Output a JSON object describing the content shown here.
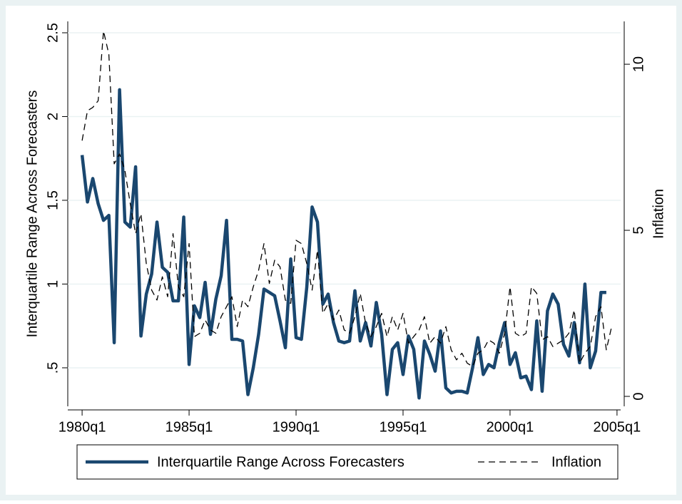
{
  "chart_data": {
    "type": "line",
    "ylabel": "Interquartile Range Across Forecasters",
    "y2label": "Inflation",
    "x": [
      1980,
      1980.25,
      1980.5,
      1980.75,
      1981,
      1981.25,
      1981.5,
      1981.75,
      1982,
      1982.25,
      1982.5,
      1982.75,
      1983,
      1983.25,
      1983.5,
      1983.75,
      1984,
      1984.25,
      1984.5,
      1984.75,
      1985,
      1985.25,
      1985.5,
      1985.75,
      1986,
      1986.25,
      1986.5,
      1986.75,
      1987,
      1987.25,
      1987.5,
      1987.75,
      1988,
      1988.25,
      1988.5,
      1988.75,
      1989,
      1989.25,
      1989.5,
      1989.75,
      1990,
      1990.25,
      1990.5,
      1990.75,
      1991,
      1991.25,
      1991.5,
      1991.75,
      1992,
      1992.25,
      1992.5,
      1992.75,
      1993,
      1993.25,
      1993.5,
      1993.75,
      1994,
      1994.25,
      1994.5,
      1994.75,
      1995,
      1995.25,
      1995.5,
      1995.75,
      1996,
      1996.25,
      1996.5,
      1996.75,
      1997,
      1997.25,
      1997.5,
      1997.75,
      1998,
      1998.25,
      1998.5,
      1998.75,
      1999,
      1999.25,
      1999.5,
      1999.75,
      2000,
      2000.25,
      2000.5,
      2000.75,
      2001,
      2001.25,
      2001.5,
      2001.75,
      2002,
      2002.25,
      2002.5,
      2002.75,
      2003,
      2003.25,
      2003.5,
      2003.75,
      2004,
      2004.25,
      2004.5,
      2004.75
    ],
    "series": [
      {
        "name": "Interquartile Range Across Forecasters",
        "color": "#1a476f",
        "width": 4.5,
        "line_style": "solid",
        "axis": "y",
        "values": [
          1.77,
          1.49,
          1.63,
          1.48,
          1.38,
          1.41,
          0.65,
          2.16,
          1.37,
          1.34,
          1.7,
          0.69,
          0.94,
          1.06,
          1.37,
          1.1,
          1.07,
          0.9,
          0.9,
          1.4,
          0.52,
          0.87,
          0.8,
          1.01,
          0.7,
          0.91,
          1.05,
          1.38,
          0.67,
          0.67,
          0.66,
          0.34,
          0.5,
          0.7,
          0.97,
          0.95,
          0.93,
          0.78,
          0.62,
          1.15,
          0.68,
          0.67,
          0.98,
          1.46,
          1.37,
          0.88,
          0.94,
          0.77,
          0.66,
          0.65,
          0.66,
          0.96,
          0.66,
          0.77,
          0.63,
          0.89,
          0.7,
          0.34,
          0.61,
          0.65,
          0.46,
          0.69,
          0.61,
          0.32,
          0.66,
          0.58,
          0.48,
          0.72,
          0.38,
          0.35,
          0.36,
          0.36,
          0.35,
          0.5,
          0.68,
          0.46,
          0.52,
          0.5,
          0.65,
          0.77,
          0.52,
          0.59,
          0.44,
          0.45,
          0.37,
          0.78,
          0.36,
          0.84,
          0.94,
          0.88,
          0.64,
          0.57,
          0.77,
          0.53,
          1.0,
          0.5,
          0.6,
          0.95,
          0.95,
          null
        ]
      },
      {
        "name": "Inflation",
        "color": "#000000",
        "width": 1.3,
        "line_style": "dashed",
        "axis": "y2",
        "values": [
          7.7,
          8.6,
          8.7,
          8.9,
          11.0,
          10.3,
          7.0,
          7.3,
          6.8,
          5.8,
          4.9,
          5.5,
          4.0,
          3.2,
          2.9,
          3.6,
          3.0,
          4.9,
          3.3,
          3.0,
          4.6,
          1.8,
          1.9,
          2.3,
          2.0,
          1.9,
          2.4,
          2.7,
          3.0,
          2.1,
          2.9,
          2.7,
          3.3,
          3.8,
          4.6,
          3.4,
          4.1,
          3.9,
          2.9,
          2.8,
          4.7,
          4.6,
          4.0,
          3.2,
          4.4,
          2.5,
          2.8,
          2.3,
          2.6,
          2.0,
          1.9,
          2.4,
          3.1,
          2.2,
          1.8,
          2.1,
          2.5,
          1.8,
          2.4,
          2.0,
          2.5,
          1.6,
          1.8,
          2.0,
          2.4,
          1.6,
          1.8,
          1.6,
          2.1,
          1.4,
          1.1,
          1.3,
          1.0,
          0.9,
          1.3,
          1.4,
          1.7,
          1.6,
          1.3,
          1.9,
          3.3,
          1.9,
          1.8,
          1.9,
          3.3,
          3.1,
          1.7,
          1.8,
          1.5,
          1.6,
          1.7,
          1.9,
          2.6,
          1.0,
          1.3,
          1.5,
          2.4,
          2.7,
          1.4,
          2.1
        ]
      }
    ],
    "xlim": [
      1979.33,
      2005.17
    ],
    "xticks": [
      {
        "value": 1980,
        "label": "1980q1"
      },
      {
        "value": 1985,
        "label": "1985q1"
      },
      {
        "value": 1990,
        "label": "1990q1"
      },
      {
        "value": 1995,
        "label": "1995q1"
      },
      {
        "value": 2000,
        "label": "2000q1"
      },
      {
        "value": 2005,
        "label": "2005q1"
      }
    ],
    "ylim": [
      0.27,
      2.568
    ],
    "yticks": [
      {
        "value": 0.5,
        "label": ".5"
      },
      1,
      1.5,
      2,
      2.5
    ],
    "y2lim": [
      -0.3,
      11.29
    ],
    "y2ticks": [
      0,
      5,
      10
    ],
    "grid": true,
    "legend": "bottom"
  }
}
